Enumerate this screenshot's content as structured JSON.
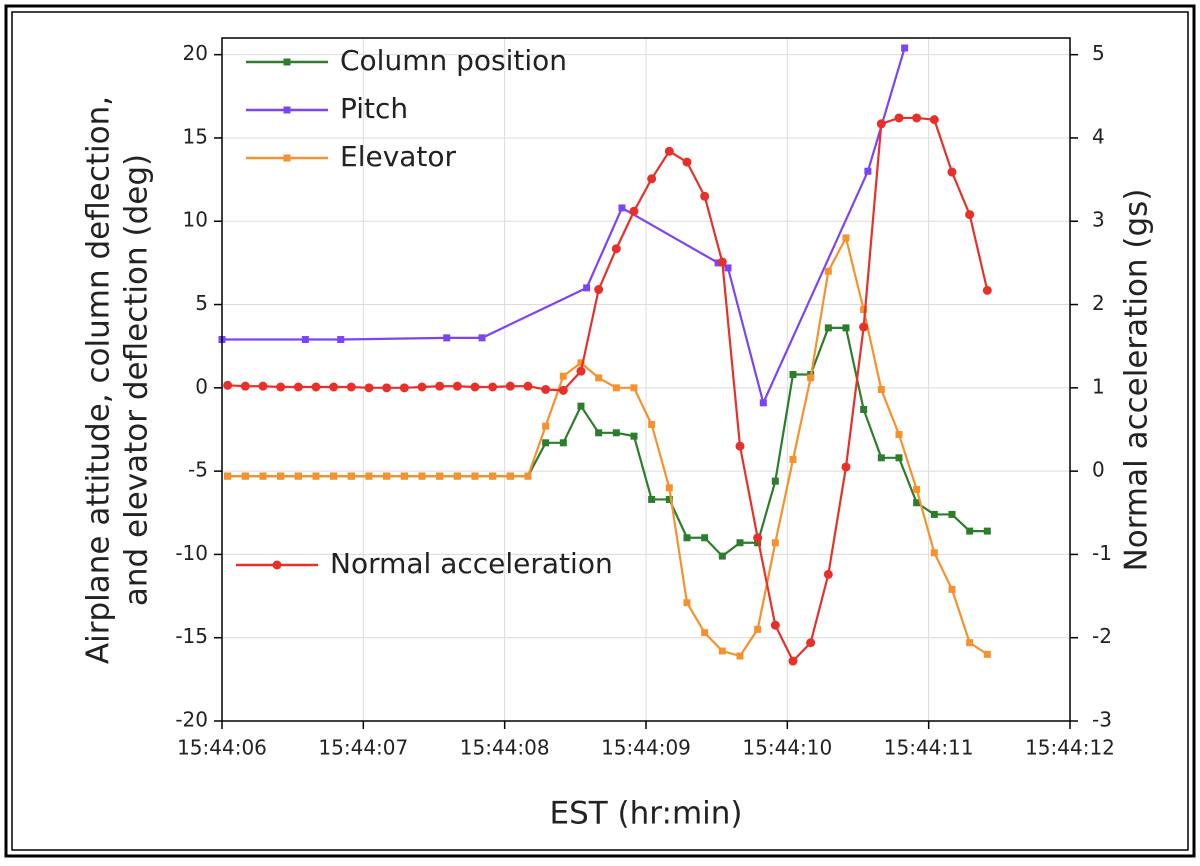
{
  "chart_data": {
    "type": "line",
    "x_label": "EST (hr:min)",
    "y_label": [
      "Airplane attitude, column deflection,",
      "and elevator deflection (deg)"
    ],
    "y2_label": "Normal acceleration (gs)",
    "xlim": [
      6,
      12
    ],
    "xticks": [
      {
        "value": 6,
        "label": "15:44:06"
      },
      {
        "value": 7,
        "label": "15:44:07"
      },
      {
        "value": 8,
        "label": "15:44:08"
      },
      {
        "value": 9,
        "label": "15:44:09"
      },
      {
        "value": 10,
        "label": "15:44:10"
      },
      {
        "value": 11,
        "label": "15:44:11"
      },
      {
        "value": 12,
        "label": "15:44:12"
      }
    ],
    "ylim": [
      -20,
      21
    ],
    "yticks": [
      -20,
      -15,
      -10,
      -5,
      0,
      5,
      10,
      15,
      20
    ],
    "y2lim": [
      -3,
      5.2
    ],
    "y2ticks": [
      -3,
      -2,
      -1,
      0,
      1,
      2,
      3,
      4,
      5
    ],
    "grid": true,
    "series": [
      {
        "name": "Column position",
        "color": "#2c7d2c",
        "marker": "square",
        "x": [
          6.04,
          6.165,
          6.29,
          6.415,
          6.54,
          6.665,
          6.79,
          6.915,
          7.04,
          7.165,
          7.29,
          7.415,
          7.54,
          7.665,
          7.79,
          7.915,
          8.04,
          8.165,
          8.29,
          8.415,
          8.54,
          8.665,
          8.79,
          8.915,
          9.04,
          9.165,
          9.29,
          9.415,
          9.54,
          9.665,
          9.79,
          9.915,
          10.04,
          10.165,
          10.29,
          10.415,
          10.54,
          10.665,
          10.79,
          10.915,
          11.04,
          11.165,
          11.29,
          11.415
        ],
        "values": [
          -5.3,
          -5.3,
          -5.3,
          -5.3,
          -5.3,
          -5.3,
          -5.3,
          -5.3,
          -5.3,
          -5.3,
          -5.3,
          -5.3,
          -5.3,
          -5.3,
          -5.3,
          -5.3,
          -5.3,
          -5.3,
          -3.3,
          -3.3,
          -1.1,
          -2.7,
          -2.7,
          -2.9,
          -6.7,
          -6.7,
          -9,
          -9,
          -10.1,
          -9.3,
          -9.3,
          -5.6,
          0.8,
          0.8,
          3.6,
          3.6,
          -1.3,
          -4.2,
          -4.2,
          -6.9,
          -7.6,
          -7.6,
          -8.6,
          -8.6
        ]
      },
      {
        "name": "Pitch",
        "color": "#7b45f5",
        "marker": "square",
        "x": [
          6.0,
          6.59,
          6.84,
          7.59,
          7.84,
          8.58,
          8.83,
          9.51,
          9.58,
          9.83,
          10.57,
          10.83
        ],
        "values": [
          2.9,
          2.9,
          2.9,
          3,
          3,
          6,
          10.8,
          7.5,
          7.2,
          -0.9,
          13,
          20.4
        ]
      },
      {
        "name": "Elevator",
        "color": "#f5922e",
        "marker": "square",
        "x": [
          6.04,
          6.165,
          6.29,
          6.415,
          6.54,
          6.665,
          6.79,
          6.915,
          7.04,
          7.165,
          7.29,
          7.415,
          7.54,
          7.665,
          7.79,
          7.915,
          8.04,
          8.165,
          8.29,
          8.415,
          8.54,
          8.665,
          8.79,
          8.915,
          9.04,
          9.165,
          9.29,
          9.415,
          9.54,
          9.665,
          9.79,
          9.915,
          10.04,
          10.165,
          10.29,
          10.415,
          10.54,
          10.665,
          10.79,
          10.915,
          11.04,
          11.165,
          11.29,
          11.415
        ],
        "values": [
          -5.3,
          -5.3,
          -5.3,
          -5.3,
          -5.3,
          -5.3,
          -5.3,
          -5.3,
          -5.3,
          -5.3,
          -5.3,
          -5.3,
          -5.3,
          -5.3,
          -5.3,
          -5.3,
          -5.3,
          -5.3,
          -2.3,
          0.7,
          1.5,
          0.6,
          0,
          0,
          -2.2,
          -6,
          -12.9,
          -14.7,
          -15.8,
          -16.1,
          -14.5,
          -9.3,
          -4.3,
          0.6,
          7,
          9,
          4.7,
          -0.1,
          -2.8,
          -6.1,
          -9.9,
          -12.1,
          -15.3,
          -16
        ]
      },
      {
        "name": "Normal acceleration",
        "color": "#e8302a",
        "marker": "circle",
        "axis": "y2",
        "x": [
          6.04,
          6.165,
          6.29,
          6.415,
          6.54,
          6.665,
          6.79,
          6.915,
          7.04,
          7.165,
          7.29,
          7.415,
          7.54,
          7.665,
          7.79,
          7.915,
          8.04,
          8.165,
          8.29,
          8.415,
          8.54,
          8.665,
          8.79,
          8.915,
          9.04,
          9.165,
          9.29,
          9.415,
          9.54,
          9.665,
          9.79,
          9.915,
          10.04,
          10.165,
          10.29,
          10.415,
          10.54,
          10.665,
          10.79,
          10.915,
          11.04,
          11.165,
          11.29,
          11.415
        ],
        "values": [
          1.03,
          1.02,
          1.02,
          1.01,
          1.01,
          1.01,
          1.01,
          1.01,
          1.0,
          1.0,
          1.0,
          1.01,
          1.02,
          1.02,
          1.01,
          1.01,
          1.02,
          1.02,
          0.98,
          0.97,
          1.2,
          2.18,
          2.67,
          3.12,
          3.51,
          3.84,
          3.71,
          3.3,
          2.51,
          0.3,
          -0.8,
          -1.85,
          -2.28,
          -2.06,
          -1.24,
          0.05,
          1.73,
          4.17,
          4.24,
          4.24,
          4.22,
          3.59,
          3.08,
          2.17
        ]
      }
    ]
  }
}
